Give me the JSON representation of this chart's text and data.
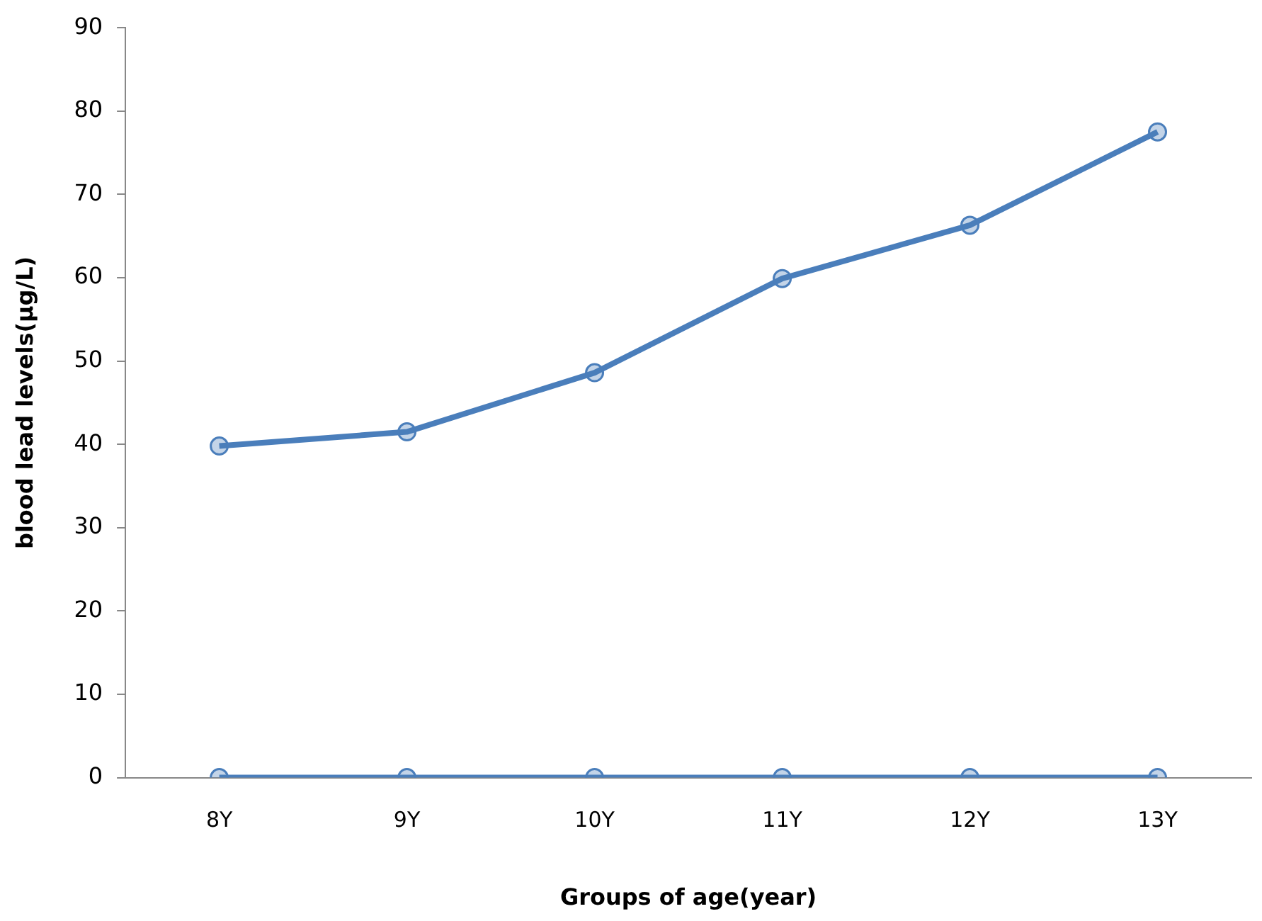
{
  "chart_data": {
    "type": "line",
    "xlabel": "Groups of age(year)",
    "ylabel": "blood lead levels(μg/L)",
    "categories": [
      "8Y",
      "9Y",
      "10Y",
      "11Y",
      "12Y",
      "13Y"
    ],
    "series": [
      {
        "color": "#4a7ebb",
        "values": [
          39.8,
          41.5,
          48.6,
          59.9,
          66.3,
          77.5
        ]
      },
      {
        "color": "#4a7ebb",
        "values": [
          0,
          0,
          0,
          0,
          0,
          0
        ]
      }
    ],
    "ylim": [
      0,
      90
    ],
    "yticks": [
      0,
      10,
      20,
      30,
      40,
      50,
      60,
      70,
      80,
      90
    ],
    "grid": false,
    "legend": false,
    "marker": "circle",
    "line_style": "solid"
  }
}
